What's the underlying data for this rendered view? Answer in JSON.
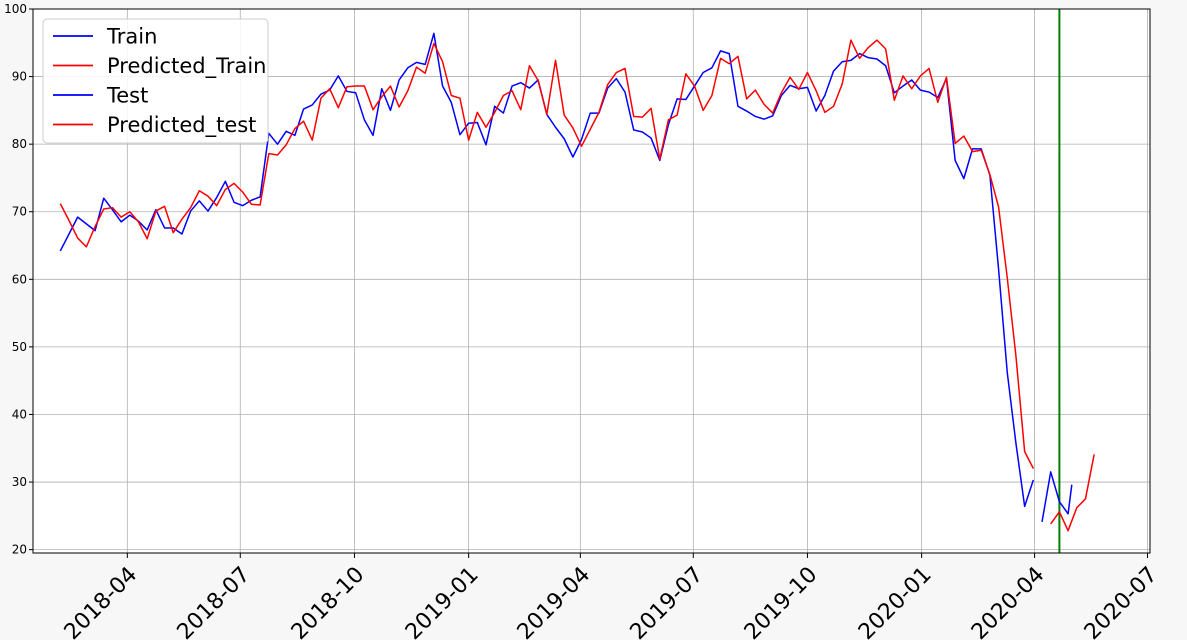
{
  "chart_data": {
    "type": "line",
    "x_axis": {
      "type": "date",
      "ticks": [
        "2018-04",
        "2018-07",
        "2018-10",
        "2019-01",
        "2019-04",
        "2019-07",
        "2019-10",
        "2020-01",
        "2020-04",
        "2020-07"
      ],
      "range": [
        "2018-01-15",
        "2020-07-03"
      ]
    },
    "y_axis": {
      "ticks": [
        "20",
        "30",
        "40",
        "50",
        "60",
        "70",
        "80",
        "90",
        "100"
      ],
      "range": [
        19.5,
        100
      ]
    },
    "grid": true,
    "legend_position": "top-left",
    "vertical_line": {
      "date": "2020-04-21",
      "color": "#007f00"
    },
    "series": [
      {
        "name": "Train",
        "color": "#0000ff",
        "x": [
          "2018-02-06",
          "2018-02-20",
          "2018-03-06",
          "2018-03-13",
          "2018-03-20",
          "2018-03-27",
          "2018-04-03",
          "2018-04-10",
          "2018-04-17",
          "2018-04-24",
          "2018-05-01",
          "2018-05-08",
          "2018-05-15",
          "2018-05-22",
          "2018-05-29",
          "2018-06-05",
          "2018-06-12",
          "2018-06-19",
          "2018-06-26",
          "2018-07-03",
          "2018-07-10",
          "2018-07-17",
          "2018-07-24",
          "2018-07-31",
          "2018-08-07",
          "2018-08-14",
          "2018-08-21",
          "2018-08-28",
          "2018-09-04",
          "2018-09-11",
          "2018-09-18",
          "2018-09-25",
          "2018-10-02",
          "2018-10-09",
          "2018-10-16",
          "2018-10-23",
          "2018-10-30",
          "2018-11-06",
          "2018-11-13",
          "2018-11-20",
          "2018-11-27",
          "2018-12-04",
          "2018-12-11",
          "2018-12-18",
          "2018-12-25",
          "2019-01-01",
          "2019-01-08",
          "2019-01-15",
          "2019-01-22",
          "2019-01-29",
          "2019-02-05",
          "2019-02-12",
          "2019-02-19",
          "2019-02-26",
          "2019-03-05",
          "2019-03-12",
          "2019-03-19",
          "2019-03-26",
          "2019-04-02",
          "2019-04-09",
          "2019-04-16",
          "2019-04-23",
          "2019-04-30",
          "2019-05-07",
          "2019-05-14",
          "2019-05-21",
          "2019-05-28",
          "2019-06-04",
          "2019-06-11",
          "2019-06-18",
          "2019-06-25",
          "2019-07-02",
          "2019-07-09",
          "2019-07-16",
          "2019-07-23",
          "2019-07-30",
          "2019-08-06",
          "2019-08-13",
          "2019-08-20",
          "2019-08-27",
          "2019-09-03",
          "2019-09-10",
          "2019-09-17",
          "2019-09-24",
          "2019-10-01",
          "2019-10-08",
          "2019-10-15",
          "2019-10-22",
          "2019-10-29",
          "2019-11-05",
          "2019-11-12",
          "2019-11-19",
          "2019-11-26",
          "2019-12-03",
          "2019-12-10",
          "2019-12-17",
          "2019-12-24",
          "2019-12-31",
          "2020-01-07",
          "2020-01-14",
          "2020-01-21",
          "2020-01-28",
          "2020-02-04",
          "2020-02-11",
          "2020-02-18",
          "2020-02-25",
          "2020-03-03",
          "2020-03-10",
          "2020-03-17",
          "2020-03-24",
          "2020-03-31"
        ],
        "y": [
          64.2,
          69.2,
          67.2,
          72.0,
          70.3,
          68.5,
          69.5,
          68.6,
          67.3,
          70.3,
          67.6,
          67.6,
          66.7,
          70.1,
          71.6,
          70.1,
          72.1,
          74.5,
          71.4,
          70.9,
          71.7,
          72.2,
          81.6,
          80.0,
          81.9,
          81.3,
          85.2,
          85.8,
          87.4,
          88.0,
          90.1,
          87.8,
          87.6,
          83.6,
          81.3,
          88.2,
          85.0,
          89.5,
          91.3,
          92.1,
          91.8,
          96.4,
          88.6,
          86.2,
          81.4,
          83.1,
          83.2,
          79.9,
          85.6,
          84.6,
          88.6,
          89.1,
          88.3,
          89.5,
          84.4,
          82.5,
          80.8,
          78.1,
          80.7,
          84.6,
          84.6,
          88.3,
          89.7,
          87.7,
          82.1,
          81.8,
          80.9,
          77.6,
          82.9,
          86.7,
          86.6,
          88.6,
          90.6,
          91.3,
          93.8,
          93.4,
          85.6,
          84.9,
          84.1,
          83.7,
          84.2,
          87.2,
          88.7,
          88.2,
          88.4,
          84.9,
          87.2,
          90.8,
          92.2,
          92.4,
          93.4,
          92.8,
          92.6,
          91.6,
          87.6,
          88.6,
          89.5,
          88.0,
          87.7,
          86.9,
          89.7,
          77.6,
          74.9,
          79.3,
          79.3,
          75.4,
          61.5,
          46.2,
          35.7,
          26.4,
          30.3
        ]
      },
      {
        "name": "Predicted_Train",
        "color": "#ff0000",
        "x": [
          "2018-02-06",
          "2018-02-13",
          "2018-02-20",
          "2018-02-27",
          "2018-03-06",
          "2018-03-13",
          "2018-03-20",
          "2018-03-27",
          "2018-04-03",
          "2018-04-10",
          "2018-04-17",
          "2018-04-24",
          "2018-05-01",
          "2018-05-08",
          "2018-05-15",
          "2018-05-22",
          "2018-05-29",
          "2018-06-05",
          "2018-06-12",
          "2018-06-19",
          "2018-06-26",
          "2018-07-03",
          "2018-07-10",
          "2018-07-17",
          "2018-07-24",
          "2018-07-31",
          "2018-08-07",
          "2018-08-14",
          "2018-08-21",
          "2018-08-28",
          "2018-09-04",
          "2018-09-11",
          "2018-09-18",
          "2018-09-25",
          "2018-10-02",
          "2018-10-09",
          "2018-10-16",
          "2018-10-23",
          "2018-10-30",
          "2018-11-06",
          "2018-11-13",
          "2018-11-20",
          "2018-11-27",
          "2018-12-04",
          "2018-12-11",
          "2018-12-18",
          "2018-12-25",
          "2019-01-01",
          "2019-01-08",
          "2019-01-15",
          "2019-01-22",
          "2019-01-29",
          "2019-02-05",
          "2019-02-12",
          "2019-02-19",
          "2019-02-26",
          "2019-03-05",
          "2019-03-12",
          "2019-03-19",
          "2019-03-26",
          "2019-04-02",
          "2019-04-09",
          "2019-04-16",
          "2019-04-23",
          "2019-04-30",
          "2019-05-07",
          "2019-05-14",
          "2019-05-21",
          "2019-05-28",
          "2019-06-04",
          "2019-06-11",
          "2019-06-18",
          "2019-06-25",
          "2019-07-02",
          "2019-07-09",
          "2019-07-16",
          "2019-07-23",
          "2019-07-30",
          "2019-08-06",
          "2019-08-13",
          "2019-08-20",
          "2019-08-27",
          "2019-09-03",
          "2019-09-10",
          "2019-09-17",
          "2019-09-24",
          "2019-10-01",
          "2019-10-08",
          "2019-10-15",
          "2019-10-22",
          "2019-10-29",
          "2019-11-05",
          "2019-11-12",
          "2019-11-19",
          "2019-11-26",
          "2019-12-03",
          "2019-12-10",
          "2019-12-17",
          "2019-12-24",
          "2019-12-31",
          "2020-01-07",
          "2020-01-14",
          "2020-01-21",
          "2020-01-28",
          "2020-02-04",
          "2020-02-11",
          "2020-02-18",
          "2020-02-25",
          "2020-03-03",
          "2020-03-10",
          "2020-03-17",
          "2020-03-24",
          "2020-03-31"
        ],
        "y": [
          71.2,
          68.7,
          66.1,
          64.8,
          67.8,
          70.4,
          70.6,
          69.2,
          70.0,
          68.5,
          66.0,
          70.1,
          70.8,
          66.9,
          68.9,
          70.6,
          73.1,
          72.3,
          70.9,
          73.3,
          74.2,
          72.9,
          71.1,
          71.0,
          78.6,
          78.4,
          79.9,
          82.3,
          83.4,
          80.6,
          86.8,
          88.2,
          85.4,
          88.5,
          88.6,
          88.6,
          85.1,
          87.0,
          88.6,
          85.5,
          87.9,
          91.4,
          90.5,
          94.9,
          92.2,
          87.2,
          86.8,
          80.6,
          84.7,
          82.5,
          84.7,
          87.2,
          87.9,
          85.1,
          91.6,
          89.4,
          84.4,
          92.4,
          84.3,
          82.4,
          79.7,
          82.2,
          84.7,
          88.8,
          90.6,
          91.2,
          84.1,
          84.0,
          85.3,
          77.8,
          83.6,
          84.3,
          90.4,
          88.6,
          85.0,
          87.2,
          92.7,
          91.9,
          93.0,
          86.7,
          88.0,
          85.9,
          84.6,
          87.6,
          89.9,
          88.1,
          90.6,
          87.9,
          84.7,
          85.6,
          88.9,
          95.4,
          92.7,
          94.3,
          95.4,
          94.1,
          86.5,
          90.1,
          88.2,
          90.1,
          91.2,
          86.2,
          89.9,
          80.1,
          81.2,
          78.9,
          79.1,
          75.5,
          70.7,
          60.2,
          48.6,
          34.5,
          32.0
        ]
      },
      {
        "name": "Test",
        "color": "#0000ff",
        "x": [
          "2020-04-07",
          "2020-04-14",
          "2020-04-21",
          "2020-04-28",
          "2020-05-01"
        ],
        "y": [
          24.1,
          31.5,
          27.1,
          25.3,
          29.6
        ]
      },
      {
        "name": "Predicted_test",
        "color": "#ff0000",
        "x": [
          "2020-04-14",
          "2020-04-21",
          "2020-04-28",
          "2020-05-05",
          "2020-05-12",
          "2020-05-19"
        ],
        "y": [
          23.8,
          25.6,
          22.8,
          26.2,
          27.5,
          34.1
        ]
      }
    ]
  }
}
